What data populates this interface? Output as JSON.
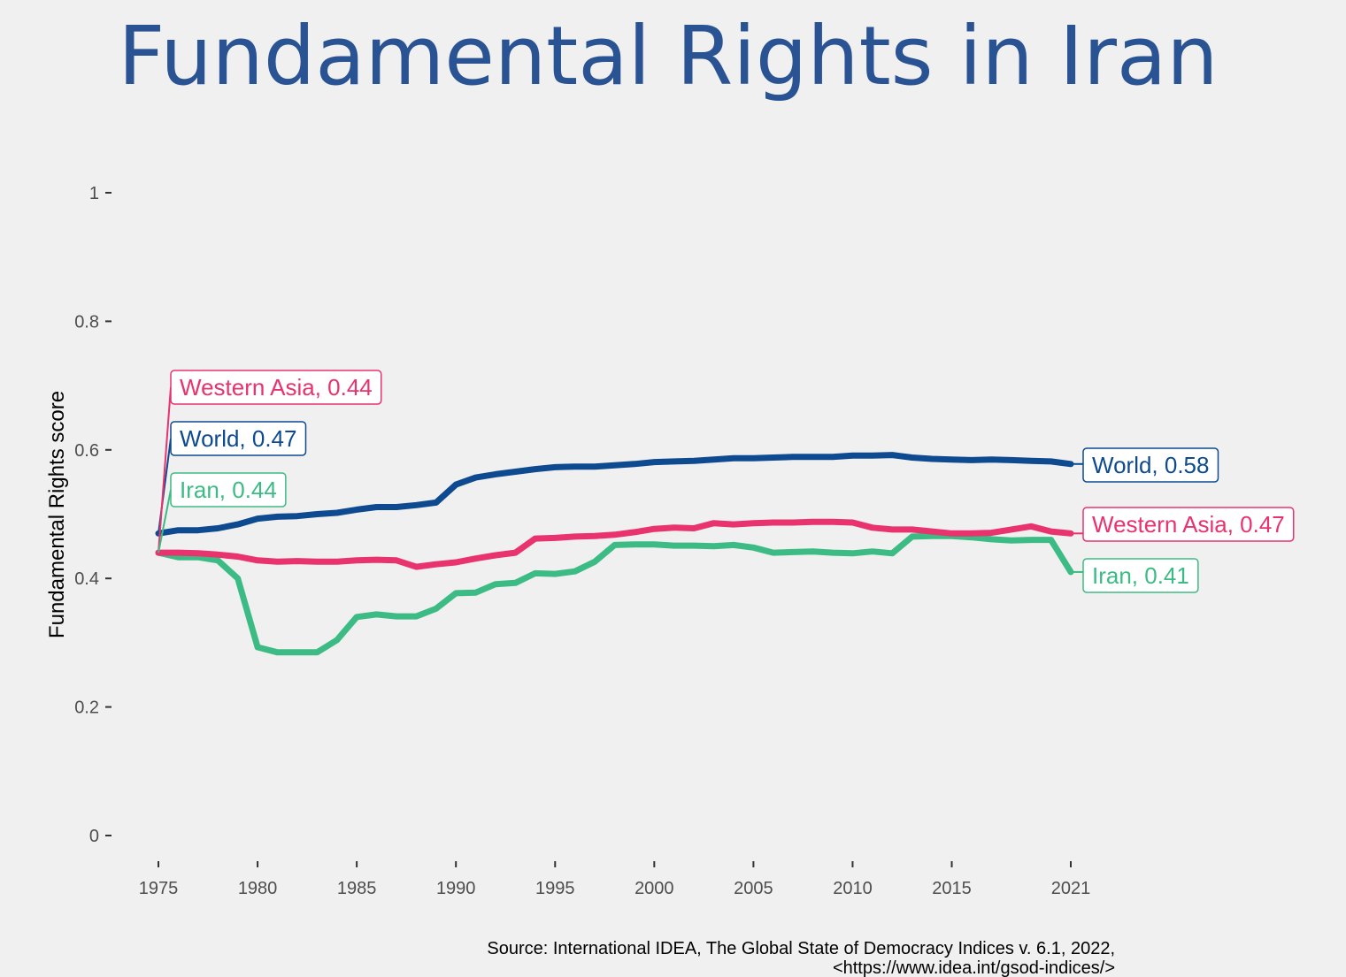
{
  "title": "Fundamental Rights in Iran",
  "source_lines": [
    "Source: International IDEA, The Global State of Democracy Indices v. 6.1, 2022,",
    "<https://www.idea.int/gsod-indices/>"
  ],
  "colors": {
    "World": "#0e4a8f",
    "Western Asia": "#e8336e",
    "Iran": "#3dbb84",
    "title": "#2a5394",
    "background": "#f0f0f0"
  },
  "chart_data": {
    "type": "line",
    "title": "Fundamental Rights in Iran",
    "xlabel": "",
    "ylabel": "Fundamental Rights score",
    "xlim": [
      1975,
      2021
    ],
    "ylim": [
      0,
      1
    ],
    "x_ticks": [
      "1975",
      "1980",
      "1985",
      "1990",
      "1995",
      "2000",
      "2005",
      "2010",
      "2015",
      "2021"
    ],
    "y_ticks": [
      "0",
      "0.2",
      "0.4",
      "0.6",
      "0.8",
      "1"
    ],
    "grid": false,
    "x": [
      1975,
      1976,
      1977,
      1978,
      1979,
      1980,
      1981,
      1982,
      1983,
      1984,
      1985,
      1986,
      1987,
      1988,
      1989,
      1990,
      1991,
      1992,
      1993,
      1994,
      1995,
      1996,
      1997,
      1998,
      1999,
      2000,
      2001,
      2002,
      2003,
      2004,
      2005,
      2006,
      2007,
      2008,
      2009,
      2010,
      2011,
      2012,
      2013,
      2014,
      2015,
      2016,
      2017,
      2018,
      2019,
      2020,
      2021
    ],
    "series": [
      {
        "name": "World",
        "values": [
          0.47,
          0.475,
          0.475,
          0.478,
          0.484,
          0.493,
          0.496,
          0.497,
          0.5,
          0.502,
          0.507,
          0.511,
          0.511,
          0.514,
          0.518,
          0.546,
          0.557,
          0.562,
          0.566,
          0.57,
          0.573,
          0.574,
          0.574,
          0.576,
          0.578,
          0.581,
          0.582,
          0.583,
          0.585,
          0.587,
          0.587,
          0.588,
          0.589,
          0.589,
          0.589,
          0.591,
          0.591,
          0.592,
          0.588,
          0.586,
          0.585,
          0.584,
          0.585,
          0.584,
          0.583,
          0.582,
          0.578
        ],
        "start_label": "World, 0.47",
        "end_label": "World, 0.58"
      },
      {
        "name": "Western Asia",
        "values": [
          0.44,
          0.44,
          0.439,
          0.437,
          0.434,
          0.428,
          0.426,
          0.427,
          0.426,
          0.426,
          0.428,
          0.429,
          0.428,
          0.418,
          0.422,
          0.425,
          0.431,
          0.436,
          0.44,
          0.462,
          0.463,
          0.465,
          0.466,
          0.468,
          0.472,
          0.477,
          0.479,
          0.478,
          0.486,
          0.484,
          0.486,
          0.487,
          0.487,
          0.488,
          0.488,
          0.487,
          0.479,
          0.476,
          0.476,
          0.473,
          0.47,
          0.47,
          0.471,
          0.476,
          0.481,
          0.473,
          0.47
        ],
        "start_label": "Western Asia, 0.44",
        "end_label": "Western Asia, 0.47"
      },
      {
        "name": "Iran",
        "values": [
          0.44,
          0.433,
          0.433,
          0.428,
          0.4,
          0.293,
          0.285,
          0.285,
          0.285,
          0.304,
          0.34,
          0.344,
          0.341,
          0.341,
          0.353,
          0.377,
          0.378,
          0.391,
          0.393,
          0.408,
          0.407,
          0.411,
          0.426,
          0.452,
          0.453,
          0.453,
          0.451,
          0.451,
          0.45,
          0.452,
          0.448,
          0.44,
          0.441,
          0.442,
          0.44,
          0.439,
          0.442,
          0.439,
          0.465,
          0.466,
          0.466,
          0.464,
          0.461,
          0.459,
          0.46,
          0.46,
          0.41
        ],
        "start_label": "Iran, 0.44",
        "end_label": "Iran, 0.41"
      }
    ]
  }
}
